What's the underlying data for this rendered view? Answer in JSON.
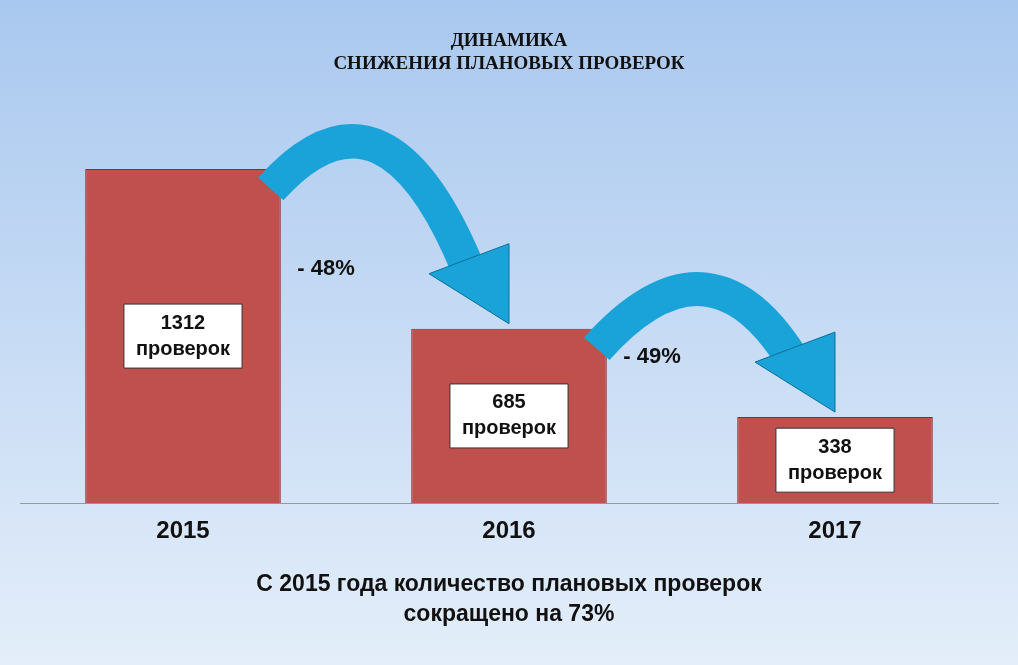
{
  "chart_data": {
    "type": "bar",
    "title": "ДИНАМИКА\nСНИЖЕНИЯ ПЛАНОВЫХ ПРОВЕРОК",
    "categories": [
      "2015",
      "2016",
      "2017"
    ],
    "values": [
      1312,
      685,
      338
    ],
    "color": "#c0504d",
    "value_labels": [
      "1312 проверок",
      "685 проверок",
      "338 проверок"
    ],
    "annotations": [
      "- 48%",
      "- 49%",
      "С 2015 года количество плановых проверок\nсокращено на 73%"
    ],
    "grid": false,
    "legend": false
  }
}
